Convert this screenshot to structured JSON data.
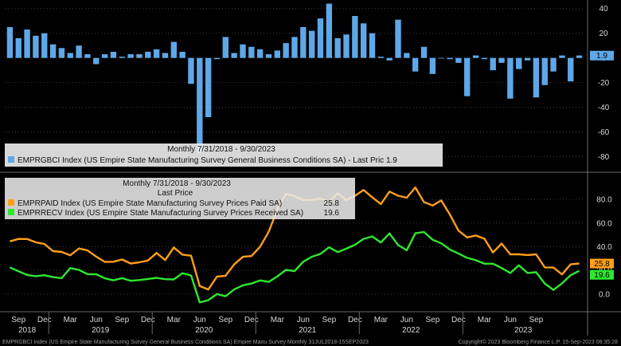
{
  "chart_data": [
    {
      "type": "bar",
      "panel": "top",
      "ylim": [
        -90,
        45
      ],
      "yticks": [
        40,
        20,
        0,
        -20,
        -40,
        -60,
        -80
      ],
      "legend_header": "Monthly 7/31/2018 - 9/30/2023",
      "legend_placement": "bottom-left",
      "series": [
        {
          "name": "EMPRGBCI Index (US Empire State Manufacturing Survey General Business Conditions SA) - Last Pric 1.9",
          "color": "#5ea8e8",
          "last_value": 1.9,
          "last_label": "1.9",
          "values": [
            25,
            16,
            23,
            18,
            20,
            11,
            8,
            4,
            10,
            3,
            -5,
            3,
            5,
            1,
            3,
            3,
            5,
            7,
            4,
            13,
            5,
            -21,
            -77,
            -48,
            -1,
            17,
            4,
            11,
            9,
            7,
            3,
            6,
            12,
            17,
            25,
            22,
            32,
            44,
            16,
            19,
            34,
            28,
            20,
            1,
            -2,
            31,
            4,
            -11,
            9,
            -13,
            0,
            -1,
            -4,
            -31,
            2,
            -1,
            -10,
            -4,
            -33,
            -9,
            -2,
            -32,
            -22,
            -11,
            2,
            -19,
            2
          ]
        }
      ]
    },
    {
      "type": "line",
      "panel": "bottom",
      "ylim": [
        -15,
        97
      ],
      "yticks": [
        80.0,
        60.0,
        40.0,
        20.0,
        0.0
      ],
      "legend_header": "Monthly 7/31/2018 - 9/30/2023",
      "legend_subheader": "Last Price",
      "legend_placement": "top-left",
      "series": [
        {
          "name": "EMPRPAID Index (US Empire State Manufacturing Survey Prices Paid SA)",
          "color": "#ff9f1a",
          "last_value": 25.8,
          "last_label": "25.8",
          "values": [
            44.6,
            46.6,
            46.5,
            43.8,
            42.3,
            36.3,
            35.6,
            32.8,
            38.5,
            36.9,
            31.7,
            27.2,
            27.3,
            29.2,
            25.8,
            26.8,
            28.3,
            34.7,
            28.7,
            39.4,
            33.3,
            32.4,
            6.7,
            3.8,
            14.7,
            15.4,
            25.0,
            31.5,
            32.1,
            40.0,
            52.7,
            71.4,
            84.7,
            82.8,
            79.6,
            79.6,
            80.8,
            78.2,
            85.2,
            79.5,
            83.1,
            88.0,
            81.9,
            76.1,
            86.7,
            83.2,
            81.5,
            90.2,
            77.8,
            74.9,
            79.2,
            67.3,
            53.6,
            47.9,
            49.5,
            46.8,
            35.1,
            42.7,
            33.6,
            33.6,
            33.0,
            33.6,
            22.5,
            22.4,
            16.6,
            25.1,
            25.8
          ]
        },
        {
          "name": "EMPRRECV Index (US Empire State Manufacturing Survey Prices Received SA)",
          "color": "#2ee82e",
          "last_value": 19.6,
          "last_label": "19.6",
          "values": [
            22.5,
            19.2,
            16.1,
            15.1,
            15.9,
            14.3,
            13.4,
            21.9,
            20.4,
            16.8,
            16.7,
            13.3,
            11.6,
            13.4,
            11.2,
            11.8,
            12.7,
            13.7,
            12.5,
            12.3,
            17.6,
            15.7,
            -7.1,
            -5.2,
            0.0,
            -1.9,
            3.8,
            7.3,
            8.9,
            11.5,
            10.2,
            14.9,
            20.4,
            19.4,
            27.3,
            31.5,
            34.0,
            39.5,
            35.5,
            38.4,
            41.7,
            46.7,
            48.7,
            43.6,
            51.3,
            41.4,
            37.0,
            51.4,
            52.5,
            45.9,
            42.9,
            37.7,
            34.2,
            30.6,
            28.6,
            25.7,
            25.6,
            22.0,
            17.7,
            24.3,
            17.8,
            18.4,
            8.9,
            3.4,
            9.0,
            15.9,
            19.6
          ]
        }
      ]
    }
  ],
  "x_axis": {
    "months": [
      "Sep",
      "Dec",
      "Mar",
      "Jun",
      "Sep",
      "Dec",
      "Mar",
      "Jun",
      "Sep",
      "Dec",
      "Mar",
      "Jun",
      "Sep",
      "Dec",
      "Mar",
      "Jun",
      "Sep",
      "Dec",
      "Mar",
      "Jun",
      "Sep"
    ],
    "years": [
      "2018",
      "2019",
      "2020",
      "2021",
      "2022",
      "2023"
    ]
  },
  "footer": {
    "left": "EMPRGBCI Index (US Empire State Manufacturing Survey General Business Conditions SA) Empire Manu Survey  Monthly 31JUL2018-15SEP2023",
    "right": "Copyright© 2023 Bloomberg Finance L.P.        15-Sep-2023 08:35:28"
  }
}
